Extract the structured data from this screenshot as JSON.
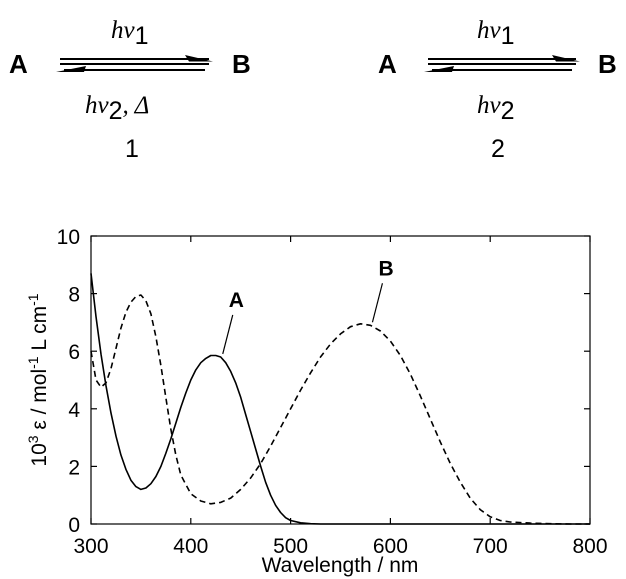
{
  "schemes": [
    {
      "left": "A",
      "right": "B",
      "forward": {
        "base": "hν",
        "sub": "1",
        "suffix": ""
      },
      "reverse": {
        "base": "hν",
        "sub": "2",
        "suffix": ", Δ"
      },
      "number": "1"
    },
    {
      "left": "A",
      "right": "B",
      "forward": {
        "base": "hν",
        "sub": "1",
        "suffix": ""
      },
      "reverse": {
        "base": "hν",
        "sub": "2",
        "suffix": ""
      },
      "number": "2"
    }
  ],
  "chart_data": {
    "type": "line",
    "xlabel": "Wavelength / nm",
    "ylabel": {
      "p1": "10",
      "p1sup": "3",
      "p2": " ε / mol",
      "p2sup": "-1",
      "p3": " L cm",
      "p3sup": "-1"
    },
    "xlim": [
      300,
      800
    ],
    "ylim": [
      0,
      10
    ],
    "xticks": [
      300,
      400,
      500,
      600,
      700,
      800
    ],
    "yticks": [
      0,
      2,
      4,
      6,
      8,
      10
    ],
    "grid": false,
    "series": [
      {
        "name": "A",
        "style": "solid",
        "x": [
          300,
          305,
          310,
          315,
          320,
          325,
          330,
          335,
          340,
          345,
          350,
          355,
          360,
          365,
          370,
          375,
          380,
          385,
          390,
          395,
          400,
          405,
          410,
          415,
          420,
          425,
          430,
          435,
          440,
          445,
          450,
          455,
          460,
          465,
          470,
          475,
          480,
          485,
          490,
          495,
          500,
          510,
          520,
          530,
          540,
          560,
          600,
          650,
          700,
          750,
          800
        ],
        "y": [
          8.7,
          7.2,
          5.9,
          4.8,
          3.85,
          3.05,
          2.4,
          1.9,
          1.52,
          1.3,
          1.2,
          1.25,
          1.4,
          1.65,
          2.0,
          2.45,
          2.95,
          3.5,
          4.05,
          4.55,
          5.0,
          5.35,
          5.6,
          5.75,
          5.85,
          5.85,
          5.8,
          5.6,
          5.3,
          4.9,
          4.4,
          3.8,
          3.2,
          2.6,
          2.0,
          1.45,
          1.0,
          0.65,
          0.4,
          0.22,
          0.12,
          0.04,
          0.01,
          0.0,
          0.0,
          0.0,
          0.0,
          0.0,
          0.0,
          0.0,
          0.0
        ]
      },
      {
        "name": "B",
        "style": "dashed",
        "x": [
          300,
          305,
          310,
          315,
          320,
          325,
          330,
          335,
          340,
          345,
          350,
          355,
          360,
          365,
          370,
          375,
          380,
          385,
          390,
          400,
          410,
          420,
          430,
          440,
          450,
          460,
          470,
          480,
          490,
          500,
          510,
          520,
          530,
          540,
          550,
          560,
          570,
          580,
          590,
          600,
          610,
          620,
          630,
          640,
          650,
          660,
          670,
          680,
          690,
          700,
          710,
          720,
          740,
          760,
          780,
          800
        ],
        "y": [
          6.0,
          5.0,
          4.75,
          4.9,
          5.4,
          6.1,
          6.8,
          7.35,
          7.7,
          7.9,
          7.95,
          7.75,
          7.3,
          6.5,
          5.5,
          4.4,
          3.3,
          2.4,
          1.7,
          1.05,
          0.8,
          0.7,
          0.75,
          0.9,
          1.2,
          1.6,
          2.1,
          2.7,
          3.35,
          4.0,
          4.65,
          5.25,
          5.8,
          6.25,
          6.6,
          6.85,
          6.95,
          6.9,
          6.7,
          6.35,
          5.85,
          5.2,
          4.45,
          3.65,
          2.85,
          2.1,
          1.45,
          0.9,
          0.5,
          0.25,
          0.12,
          0.07,
          0.03,
          0.01,
          0.0,
          0.0
        ]
      }
    ],
    "annotations": [
      {
        "text": "A",
        "series": "A",
        "at_x": 428
      },
      {
        "text": "B",
        "series": "B",
        "at_x": 578
      }
    ]
  }
}
